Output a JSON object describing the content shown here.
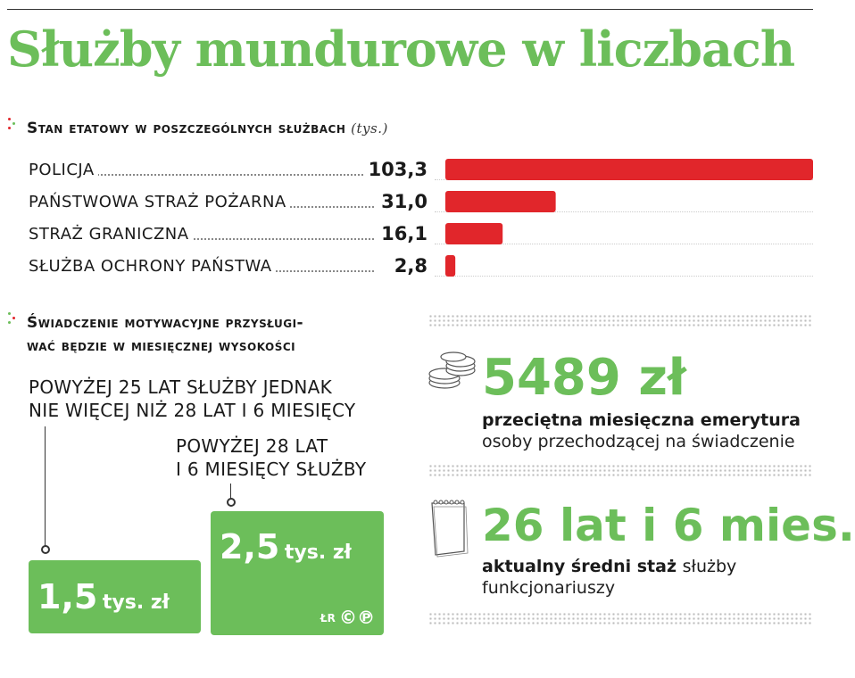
{
  "title": "Służby mundurowe w liczbach",
  "section1": {
    "heading": "Stan etatowy w poszczególnych służbach",
    "unit": "(tys.)"
  },
  "chart_data": {
    "type": "bar",
    "orientation": "horizontal",
    "categories": [
      "POLICJA",
      "PAŃSTWOWA STRAŻ POŻARNA",
      "STRAŻ GRANICZNA",
      "SŁUŻBA OCHRONY PAŃSTWA"
    ],
    "values": [
      103.3,
      31.0,
      16.1,
      2.8
    ],
    "value_labels": [
      "103,3",
      "31,0",
      "16,1",
      "2,8"
    ],
    "bar_color": "#e1262b",
    "title": "Stan etatowy w poszczególnych służbach",
    "xlabel": "",
    "ylabel": "",
    "xlim": [
      0,
      103.3
    ]
  },
  "section2": {
    "heading_line1": "Świadczenie motywacyjne przysługi-",
    "heading_line2": "wać będzie w miesięcznej  wysokości",
    "label_a_line1": "POWYŻEJ 25 LAT SŁUŻBY JEDNAK",
    "label_a_line2": "NIE WIĘCEJ NIŻ 28 LAT I 6 MIESIĘCY",
    "label_b_line1": "POWYŻEJ 28 LAT",
    "label_b_line2": "I 6 MIESIĘCY SŁUŻBY",
    "amount_a_num": "1,5",
    "amount_a_unit": "tys. zł",
    "amount_b_num": "2,5",
    "amount_b_unit": "tys. zł",
    "credit": "ŁR"
  },
  "stats": {
    "pension_value": "5489 zł",
    "pension_bold": "przeciętna miesięczna emerytura",
    "pension_normal": "osoby przechodzącej na świadczenie",
    "tenure_value": "26 lat i 6 mies.",
    "tenure_bold": "aktualny średni staż",
    "tenure_normal_1": "służby",
    "tenure_normal_2": "funkcjonariuszy"
  },
  "colors": {
    "accent_green": "#6cbe5a",
    "bar_red": "#e1262b",
    "bullet_red": "#e1262b",
    "bullet_green": "#6cbe5a"
  },
  "icons": {
    "coins": "coin-stack-icon",
    "calendar": "calendar-icon",
    "copyright": "copyright-icon",
    "phonogram": "phonogram-icon"
  }
}
